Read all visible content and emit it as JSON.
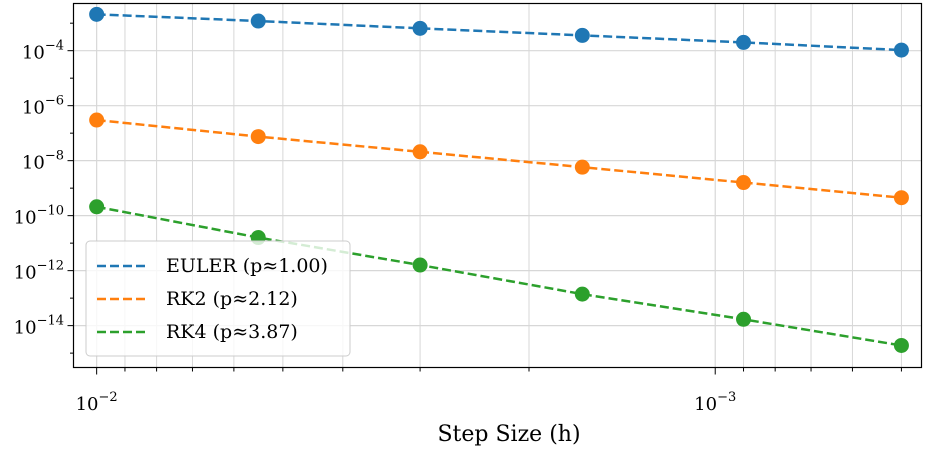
{
  "chart_data": {
    "type": "line",
    "title": "",
    "xlabel": "Step Size (h)",
    "ylabel": "",
    "x_scale": "log",
    "y_scale": "log",
    "x_inverted": true,
    "xlim": [
      0.0109,
      0.000464
    ],
    "ylim": [
      3e-16,
      0.0052
    ],
    "grid": true,
    "legend_position": "lower-left",
    "x": [
      0.01,
      0.00548,
      0.003,
      0.00164,
      0.0009,
      0.0005
    ],
    "xticks": [
      {
        "value": 0.01,
        "base": "10",
        "exp": "−2"
      },
      {
        "value": 0.001,
        "base": "10",
        "exp": "−3"
      }
    ],
    "yticks": [
      {
        "value": 0.0001,
        "base": "10",
        "exp": "−4"
      },
      {
        "value": 1e-06,
        "base": "10",
        "exp": "−6"
      },
      {
        "value": 1e-08,
        "base": "10",
        "exp": "−8"
      },
      {
        "value": 1e-10,
        "base": "10",
        "exp": "−10"
      },
      {
        "value": 1e-12,
        "base": "10",
        "exp": "−12"
      },
      {
        "value": 1e-14,
        "base": "10",
        "exp": "−14"
      }
    ],
    "series": [
      {
        "name": "EULER (p≈1.00)",
        "color": "#1f77b4",
        "values": [
          0.0021,
          0.0012,
          0.00065,
          0.00036,
          0.0002,
          0.000105
        ]
      },
      {
        "name": "RK2 (p≈2.12)",
        "color": "#ff7f0e",
        "values": [
          3e-07,
          7.5e-08,
          2.1e-08,
          5.8e-09,
          1.6e-09,
          4.5e-10
        ]
      },
      {
        "name": "RK4 (p≈3.87)",
        "color": "#2ca02c",
        "values": [
          2.1e-10,
          1.6e-11,
          1.6e-12,
          1.4e-13,
          1.7e-14,
          1.9e-15
        ]
      }
    ]
  }
}
